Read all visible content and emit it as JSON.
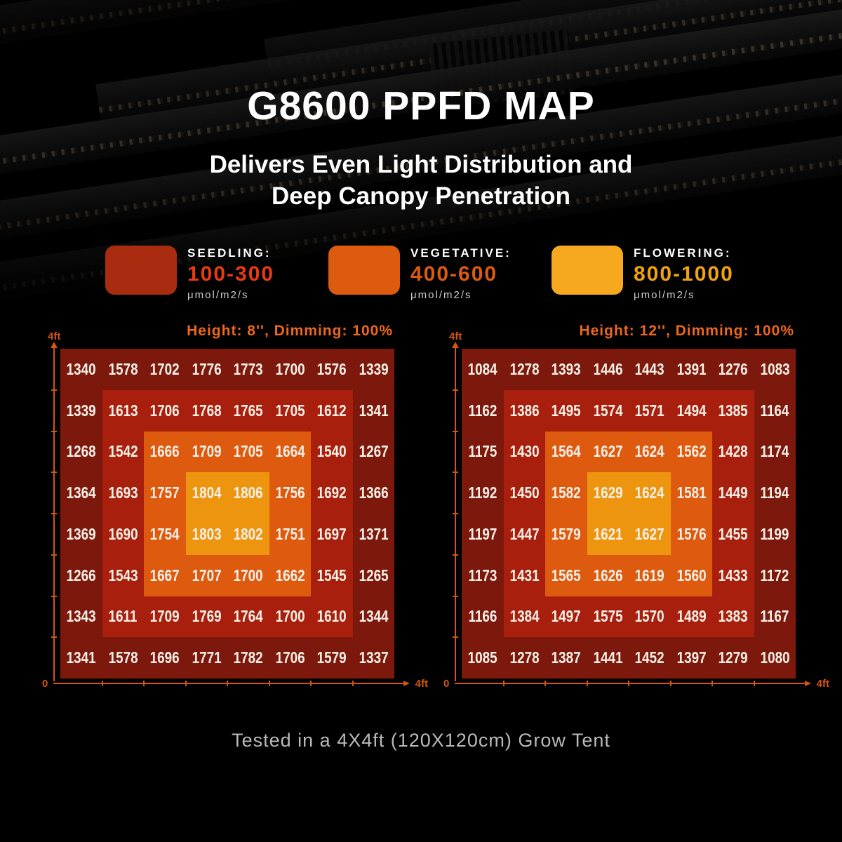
{
  "page": {
    "title": "G8600 PPFD MAP",
    "subtitle_line1": "Delivers Even Light Distribution and",
    "subtitle_line2": "Deep Canopy Penetration",
    "footer": "Tested in a 4X4ft (120X120cm) Grow Tent"
  },
  "legend": {
    "items": [
      {
        "label": "SEEDLING:",
        "range": "100-300",
        "unit": "μmol/m2/s"
      },
      {
        "label": "VEGETATIVE:",
        "range": "400-600",
        "unit": "μmol/m2/s"
      },
      {
        "label": "FLOWERING:",
        "range": "800-1000",
        "unit": "μmol/m2/s"
      }
    ]
  },
  "colors": {
    "title_text": "#ffffff",
    "unit_text": "#cccccc",
    "footer_text": "#b9b9b9",
    "cell_text": "#f6f1e8",
    "chart_header": "#ee671c",
    "axis": "#d4560f",
    "zone0": "#7d190c",
    "zone1": "#a8200d",
    "zone2": "#de5a0e",
    "zone3": "#ee9510",
    "seedling_swatch": "#a92b10",
    "seedling_range": "#e93a12",
    "vegetative_swatch": "#dd5b0e",
    "vegetative_range": "#dd5b0e",
    "flowering_swatch": "#f6a91f",
    "flowering_range": "#f0a311"
  },
  "chart_data": [
    {
      "type": "heatmap",
      "title": "Height: 8'', Dimming: 100%",
      "x_axis": {
        "origin": "0",
        "end": "4ft"
      },
      "y_axis": {
        "end": "4ft"
      },
      "unit": "μmol/m2/s",
      "grid_size": "8x8",
      "zone_ranges": {
        "outer_to_center": [
          "#7d190c",
          "#a8200d",
          "#de5a0e",
          "#ee9510"
        ]
      },
      "values": [
        [
          1340,
          1578,
          1702,
          1776,
          1773,
          1700,
          1576,
          1339
        ],
        [
          1339,
          1613,
          1706,
          1768,
          1765,
          1705,
          1612,
          1341
        ],
        [
          1268,
          1542,
          1666,
          1709,
          1705,
          1664,
          1540,
          1267
        ],
        [
          1364,
          1693,
          1757,
          1804,
          1806,
          1756,
          1692,
          1366
        ],
        [
          1369,
          1690,
          1754,
          1803,
          1802,
          1751,
          1697,
          1371
        ],
        [
          1266,
          1543,
          1667,
          1707,
          1700,
          1662,
          1545,
          1265
        ],
        [
          1343,
          1611,
          1709,
          1769,
          1764,
          1700,
          1610,
          1344
        ],
        [
          1341,
          1578,
          1696,
          1771,
          1782,
          1706,
          1579,
          1337
        ]
      ]
    },
    {
      "type": "heatmap",
      "title": "Height: 12'', Dimming: 100%",
      "x_axis": {
        "origin": "0",
        "end": "4ft"
      },
      "y_axis": {
        "end": "4ft"
      },
      "unit": "μmol/m2/s",
      "grid_size": "8x8",
      "zone_ranges": {
        "outer_to_center": [
          "#7d190c",
          "#a8200d",
          "#de5a0e",
          "#ee9510"
        ]
      },
      "values": [
        [
          1084,
          1278,
          1393,
          1446,
          1443,
          1391,
          1276,
          1083
        ],
        [
          1162,
          1386,
          1495,
          1574,
          1571,
          1494,
          1385,
          1164
        ],
        [
          1175,
          1430,
          1564,
          1627,
          1624,
          1562,
          1428,
          1174
        ],
        [
          1192,
          1450,
          1582,
          1629,
          1624,
          1581,
          1449,
          1194
        ],
        [
          1197,
          1447,
          1579,
          1621,
          1627,
          1576,
          1455,
          1199
        ],
        [
          1173,
          1431,
          1565,
          1626,
          1619,
          1560,
          1433,
          1172
        ],
        [
          1166,
          1384,
          1497,
          1575,
          1570,
          1489,
          1383,
          1167
        ],
        [
          1085,
          1278,
          1387,
          1441,
          1452,
          1397,
          1279,
          1080
        ]
      ]
    }
  ]
}
